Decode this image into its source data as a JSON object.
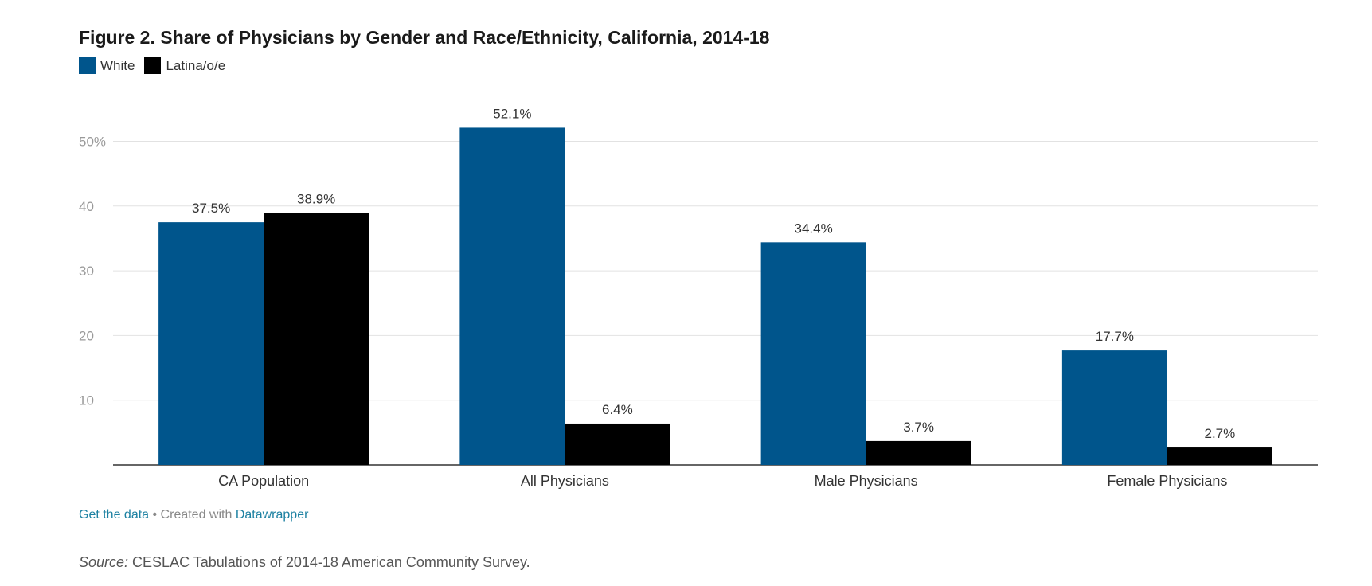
{
  "title": "Figure 2. Share of Physicians by Gender and Race/Ethnicity, California, 2014-18",
  "footer": {
    "get_data": "Get the data",
    "separator": " • Created with ",
    "tool": "Datawrapper"
  },
  "source": {
    "label": "Source:",
    "text": " CESLAC Tabulations of 2014-18 American Community Survey."
  },
  "colors": {
    "white_series": "#00558c",
    "latina_series": "#000000",
    "gridline": "#e2e2e2",
    "axis": "#333333",
    "tick_label": "#999999"
  },
  "chart_data": {
    "type": "bar",
    "title": "Figure 2. Share of Physicians by Gender and Race/Ethnicity, California, 2014-18",
    "xlabel": "",
    "ylabel": "",
    "ylim": [
      0,
      55
    ],
    "yticks": [
      10,
      20,
      30,
      40,
      50
    ],
    "ytick_labels": [
      "10",
      "20",
      "30",
      "40",
      "50%"
    ],
    "grid": true,
    "legend_position": "top-left",
    "categories": [
      "CA Population",
      "All Physicians",
      "Male Physicians",
      "Female Physicians"
    ],
    "series": [
      {
        "name": "White",
        "color": "#00558c",
        "values": [
          37.5,
          52.1,
          34.4,
          17.7
        ],
        "labels": [
          "37.5%",
          "52.1%",
          "34.4%",
          "17.7%"
        ]
      },
      {
        "name": "Latina/o/e",
        "color": "#000000",
        "values": [
          38.9,
          6.4,
          3.7,
          2.7
        ],
        "labels": [
          "38.9%",
          "6.4%",
          "3.7%",
          "2.7%"
        ]
      }
    ]
  }
}
